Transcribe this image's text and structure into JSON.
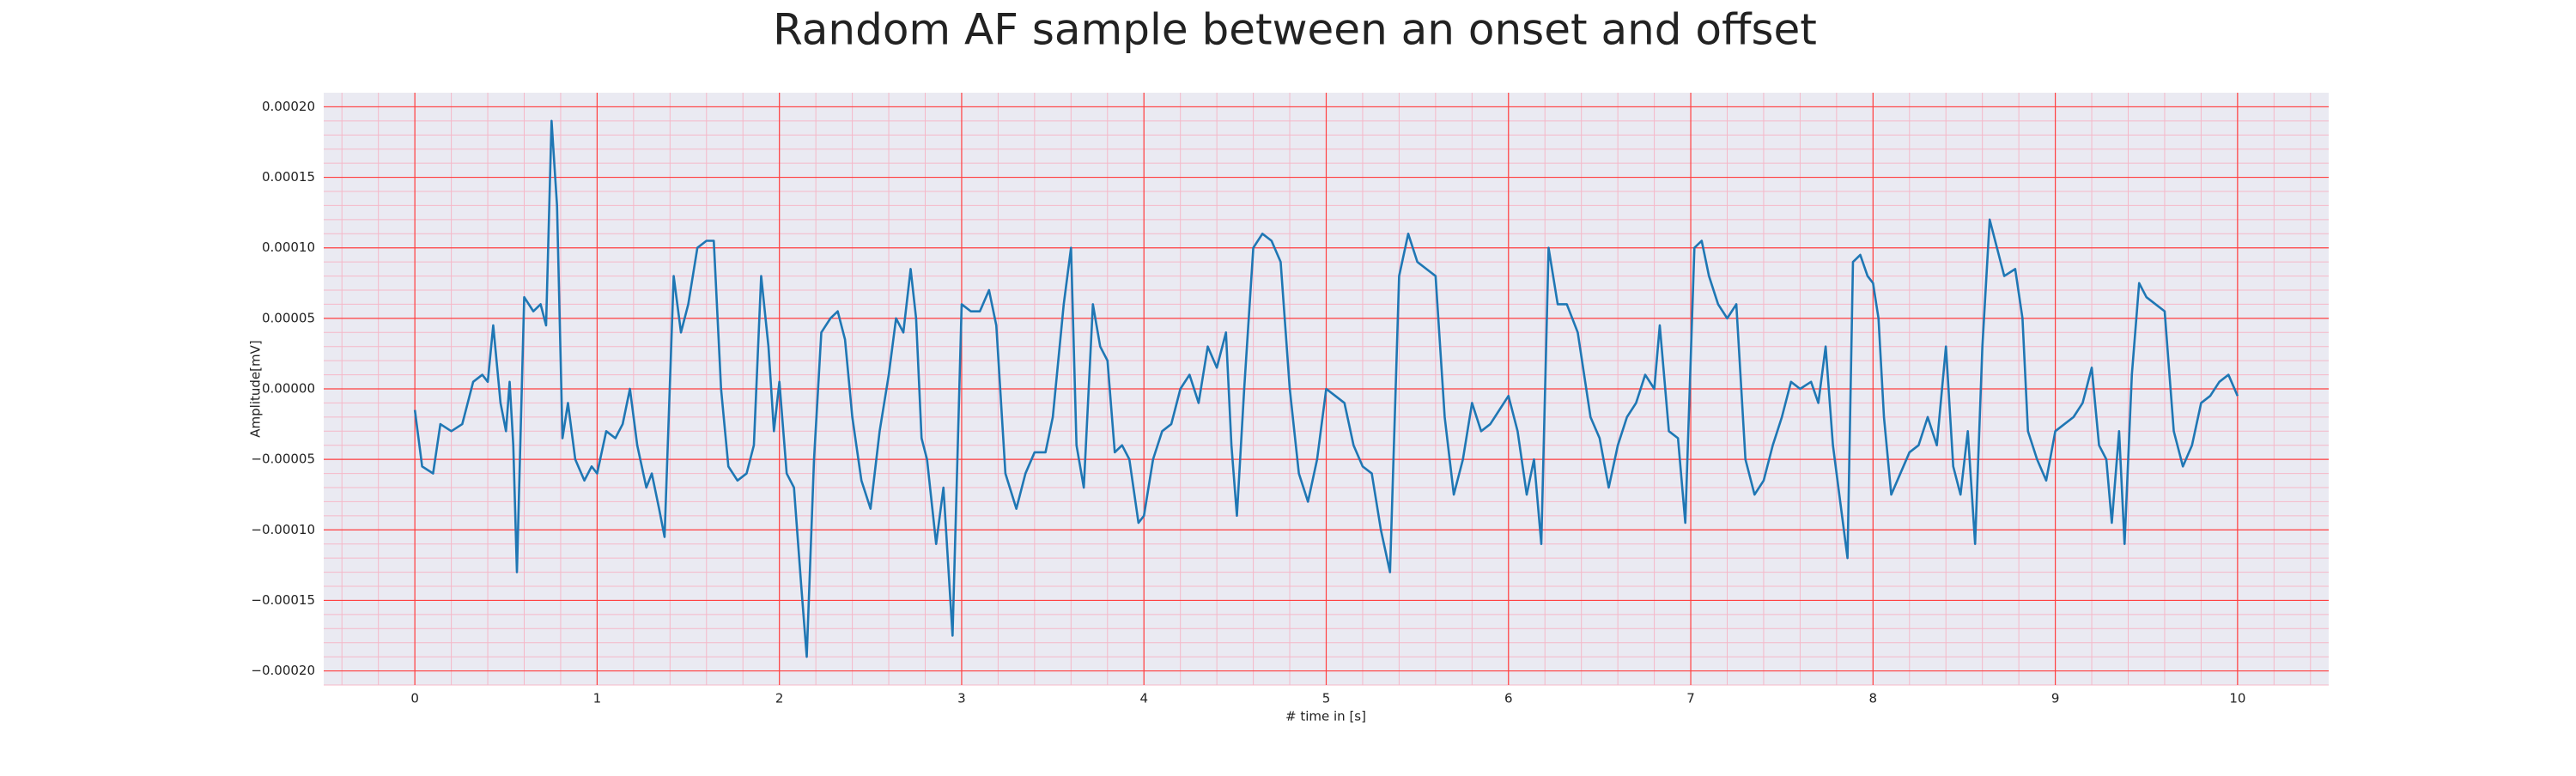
{
  "chart_data": {
    "type": "line",
    "title": "Random AF sample between an onset and offset",
    "xlabel": "# time in [s]",
    "ylabel": "Amplitude[mV]",
    "xlim": [
      -0.5,
      10.5
    ],
    "ylim": [
      -0.00021,
      0.00021
    ],
    "xticks": [
      0,
      1,
      2,
      3,
      4,
      5,
      6,
      7,
      8,
      9,
      10
    ],
    "yticks": [
      {
        "value": -0.0002,
        "label": "−0.00020"
      },
      {
        "value": -0.00015,
        "label": "−0.00015"
      },
      {
        "value": -0.0001,
        "label": "−0.00010"
      },
      {
        "value": -5e-05,
        "label": "−0.00005"
      },
      {
        "value": 0,
        "label": "0.00000"
      },
      {
        "value": 5e-05,
        "label": "0.00005"
      },
      {
        "value": 0.0001,
        "label": "0.00010"
      },
      {
        "value": 0.00015,
        "label": "0.00015"
      },
      {
        "value": 0.0002,
        "label": "0.00020"
      }
    ],
    "grid": true,
    "grid_color": "#ff4040",
    "minor_grid": true,
    "minor_grid_color": "#f5b8c8",
    "background": "#eaeaf2",
    "series": [
      {
        "color": "#1f77b4",
        "x": [
          0,
          0.04,
          0.1,
          0.14,
          0.2,
          0.26,
          0.32,
          0.37,
          0.4,
          0.43,
          0.47,
          0.5,
          0.52,
          0.54,
          0.56,
          0.6,
          0.65,
          0.69,
          0.72,
          0.75,
          0.78,
          0.81,
          0.84,
          0.88,
          0.93,
          0.97,
          1.0,
          1.05,
          1.1,
          1.14,
          1.18,
          1.22,
          1.27,
          1.3,
          1.34,
          1.37,
          1.42,
          1.46,
          1.5,
          1.55,
          1.6,
          1.64,
          1.68,
          1.72,
          1.77,
          1.82,
          1.86,
          1.9,
          1.94,
          1.97,
          2.0,
          2.04,
          2.08,
          2.12,
          2.15,
          2.19,
          2.23,
          2.28,
          2.32,
          2.36,
          2.4,
          2.45,
          2.5,
          2.55,
          2.6,
          2.64,
          2.68,
          2.72,
          2.75,
          2.78,
          2.81,
          2.86,
          2.9,
          2.95,
          3.0,
          3.05,
          3.1,
          3.15,
          3.19,
          3.24,
          3.3,
          3.35,
          3.4,
          3.46,
          3.5,
          3.56,
          3.6,
          3.63,
          3.67,
          3.72,
          3.76,
          3.8,
          3.84,
          3.88,
          3.92,
          3.97,
          4.0,
          4.05,
          4.1,
          4.15,
          4.2,
          4.25,
          4.3,
          4.35,
          4.4,
          4.45,
          4.48,
          4.51,
          4.55,
          4.6,
          4.65,
          4.7,
          4.75,
          4.8,
          4.85,
          4.9,
          4.95,
          5.0,
          5.05,
          5.1,
          5.15,
          5.2,
          5.25,
          5.3,
          5.35,
          5.4,
          5.45,
          5.5,
          5.55,
          5.6,
          5.65,
          5.7,
          5.75,
          5.8,
          5.85,
          5.9,
          5.95,
          6.0,
          6.05,
          6.1,
          6.14,
          6.18,
          6.22,
          6.27,
          6.32,
          6.38,
          6.45,
          6.5,
          6.55,
          6.6,
          6.65,
          6.7,
          6.75,
          6.8,
          6.83,
          6.88,
          6.93,
          6.97,
          7.02,
          7.06,
          7.1,
          7.15,
          7.2,
          7.25,
          7.3,
          7.35,
          7.4,
          7.45,
          7.5,
          7.55,
          7.6,
          7.66,
          7.7,
          7.74,
          7.78,
          7.82,
          7.86,
          7.89,
          7.93,
          7.97,
          8.0,
          8.03,
          8.06,
          8.1,
          8.15,
          8.2,
          8.25,
          8.3,
          8.35,
          8.4,
          8.44,
          8.48,
          8.52,
          8.56,
          8.6,
          8.64,
          8.68,
          8.72,
          8.78,
          8.82,
          8.85,
          8.9,
          8.95,
          9.0,
          9.05,
          9.1,
          9.15,
          9.2,
          9.24,
          9.28,
          9.31,
          9.35,
          9.38,
          9.42,
          9.46,
          9.5,
          9.55,
          9.6,
          9.65,
          9.7,
          9.75,
          9.8,
          9.85,
          9.9,
          9.95,
          10.0
        ],
        "values": [
          -1.5e-05,
          -5.5e-05,
          -6e-05,
          -2.5e-05,
          -3e-05,
          -2.5e-05,
          5e-06,
          1e-05,
          5e-06,
          4.5e-05,
          -1e-05,
          -3e-05,
          5e-06,
          -4e-05,
          -0.00013,
          6.5e-05,
          5.5e-05,
          6e-05,
          4.5e-05,
          0.00019,
          0.00013,
          -3.5e-05,
          -1e-05,
          -5e-05,
          -6.5e-05,
          -5.5e-05,
          -6e-05,
          -3e-05,
          -3.5e-05,
          -2.5e-05,
          0,
          -4e-05,
          -7e-05,
          -6e-05,
          -8.5e-05,
          -0.000105,
          8e-05,
          4e-05,
          6e-05,
          0.0001,
          0.000105,
          0.000105,
          0,
          -5.5e-05,
          -6.5e-05,
          -6e-05,
          -4e-05,
          8e-05,
          3e-05,
          -3e-05,
          5e-06,
          -6e-05,
          -7e-05,
          -0.00014,
          -0.00019,
          -5e-05,
          4e-05,
          5e-05,
          5.5e-05,
          3.5e-05,
          -2e-05,
          -6.5e-05,
          -8.5e-05,
          -3e-05,
          1e-05,
          5e-05,
          4e-05,
          8.5e-05,
          5e-05,
          -3.5e-05,
          -5e-05,
          -0.00011,
          -7e-05,
          -0.000175,
          6e-05,
          5.5e-05,
          5.5e-05,
          7e-05,
          4.5e-05,
          -6e-05,
          -8.5e-05,
          -6e-05,
          -4.5e-05,
          -4.5e-05,
          -2e-05,
          6e-05,
          0.0001,
          -4e-05,
          -7e-05,
          6e-05,
          3e-05,
          2e-05,
          -4.5e-05,
          -4e-05,
          -5e-05,
          -9.5e-05,
          -9e-05,
          -5e-05,
          -3e-05,
          -2.5e-05,
          0,
          1e-05,
          -1e-05,
          3e-05,
          1.5e-05,
          4e-05,
          -4e-05,
          -9e-05,
          0,
          0.0001,
          0.00011,
          0.000105,
          9e-05,
          0,
          -6e-05,
          -8e-05,
          -5e-05,
          0,
          -5e-06,
          -1e-05,
          -4e-05,
          -5.5e-05,
          -6e-05,
          -0.0001,
          -0.00013,
          8e-05,
          0.00011,
          9e-05,
          8.5e-05,
          8e-05,
          -2e-05,
          -7.5e-05,
          -5e-05,
          -1e-05,
          -3e-05,
          -2.5e-05,
          -1.5e-05,
          -5e-06,
          -3e-05,
          -7.5e-05,
          -5e-05,
          -0.00011,
          0.0001,
          6e-05,
          6e-05,
          4e-05,
          -2e-05,
          -3.5e-05,
          -7e-05,
          -4e-05,
          -2e-05,
          -1e-05,
          1e-05,
          0,
          4.5e-05,
          -3e-05,
          -3.5e-05,
          -9.5e-05,
          0.0001,
          0.000105,
          8e-05,
          6e-05,
          5e-05,
          6e-05,
          -5e-05,
          -7.5e-05,
          -6.5e-05,
          -4e-05,
          -2e-05,
          5e-06,
          0,
          5e-06,
          -1e-05,
          3e-05,
          -4e-05,
          -8e-05,
          -0.00012,
          9e-05,
          9.5e-05,
          8e-05,
          7.5e-05,
          5e-05,
          -2e-05,
          -7.5e-05,
          -6e-05,
          -4.5e-05,
          -4e-05,
          -2e-05,
          -4e-05,
          3e-05,
          -5.5e-05,
          -7.5e-05,
          -3e-05,
          -0.00011,
          3e-05,
          0.00012,
          0.0001,
          8e-05,
          8.5e-05,
          5e-05,
          -3e-05,
          -5e-05,
          -6.5e-05,
          -3e-05,
          -2.5e-05,
          -2e-05,
          -1e-05,
          1.5e-05,
          -4e-05,
          -5e-05,
          -9.5e-05,
          -3e-05,
          -0.00011,
          1e-05,
          7.5e-05,
          6.5e-05,
          6e-05,
          5.5e-05,
          -3e-05,
          -5.5e-05,
          -4e-05,
          -1e-05,
          -5e-06,
          5e-06,
          1e-05,
          -5e-06
        ]
      }
    ]
  }
}
